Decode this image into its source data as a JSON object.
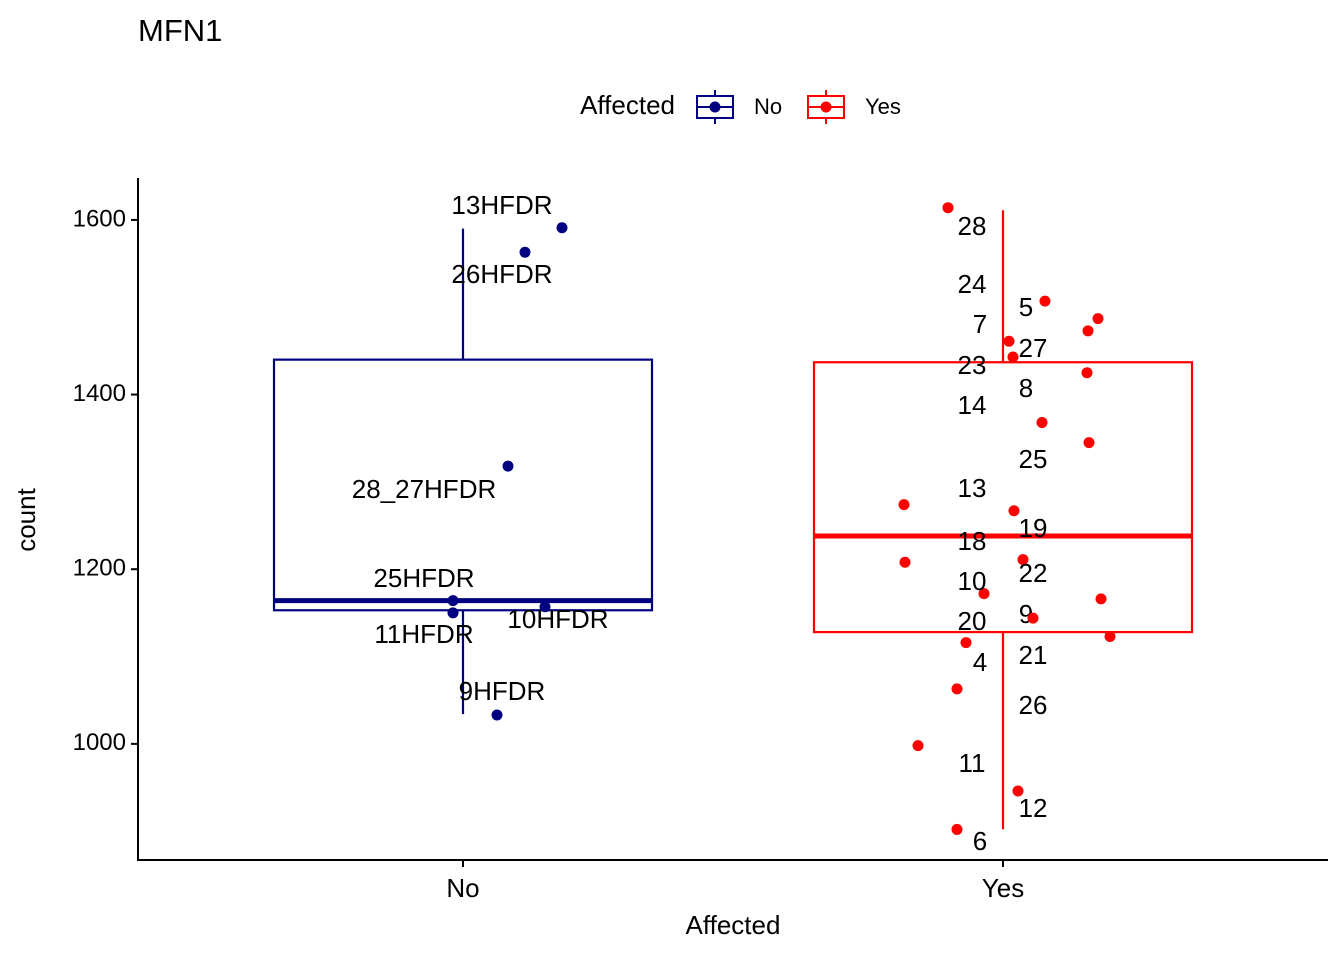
{
  "chart_data": {
    "type": "box",
    "title": "MFN1",
    "x_label": "Affected",
    "y_label": "count",
    "legend_title": "Affected",
    "legend_position": "top",
    "categories": [
      "No",
      "Yes"
    ],
    "ylim": [
      867,
      1648
    ],
    "yticks": [
      1000,
      1200,
      1400,
      1600
    ],
    "series": [
      {
        "name": "No",
        "color": "#000080",
        "whisker_low": 1034,
        "q1": 1153,
        "median": 1164,
        "q3": 1440,
        "whisker_high": 1590,
        "point_labels": [
          "13HFDR",
          "26HFDR",
          "28_27HFDR",
          "25HFDR",
          "11HFDR",
          "10HFDR",
          "9HFDR"
        ],
        "point_values": [
          1591,
          1563,
          1318,
          1164,
          1150,
          1157,
          1033
        ]
      },
      {
        "name": "Yes",
        "color": "#ff0000",
        "whisker_low": 902,
        "q1": 1128,
        "median": 1238,
        "q3": 1437,
        "whisker_high": 1611,
        "point_labels": [
          "28",
          "24",
          "5",
          "7",
          "27",
          "23",
          "8",
          "14",
          "25",
          "13",
          "19",
          "18",
          "22",
          "10",
          "9",
          "20",
          "21",
          "4",
          "26",
          "11",
          "12",
          "6"
        ],
        "point_values": [
          1614,
          1507,
          1487,
          1473,
          1461,
          1443,
          1425,
          1368,
          1345,
          1274,
          1267,
          1211,
          1208,
          1172,
          1166,
          1144,
          1123,
          1116,
          1063,
          998,
          946,
          902
        ]
      }
    ]
  }
}
